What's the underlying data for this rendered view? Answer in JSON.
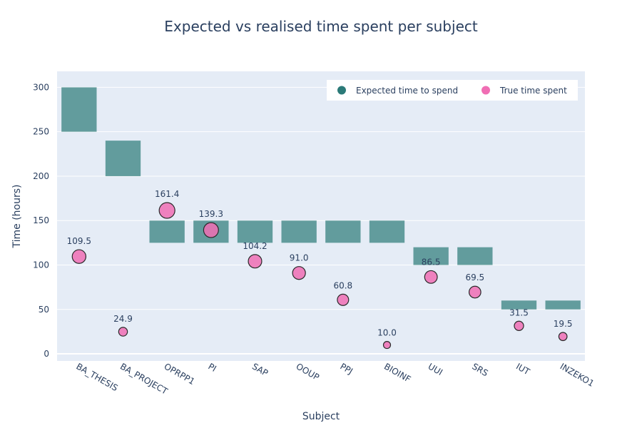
{
  "chart_data": {
    "type": "bar",
    "title": "Expected vs realised time spent per subject",
    "xlabel": "Subject",
    "ylabel": "Time (hours)",
    "ylim": [
      -8,
      318
    ],
    "yticks": [
      0,
      50,
      100,
      150,
      200,
      250,
      300
    ],
    "categories": [
      "BA_THESIS",
      "BA_PROJECT",
      "OPRPP1",
      "PI",
      "SAP",
      "OOUP",
      "PPJ",
      "BIOINF",
      "UUI",
      "SRS",
      "IUT",
      "INZEKO1"
    ],
    "legend_position": "top-right",
    "series": [
      {
        "name": "Expected time to spend",
        "kind": "range-bar",
        "color": "#2b7a78",
        "ranges": [
          [
            250,
            300
          ],
          [
            200,
            240
          ],
          [
            125,
            150
          ],
          [
            125,
            150
          ],
          [
            125,
            150
          ],
          [
            125,
            150
          ],
          [
            125,
            150
          ],
          [
            125,
            150
          ],
          [
            100,
            120
          ],
          [
            100,
            120
          ],
          [
            50,
            60
          ],
          [
            50,
            60
          ]
        ]
      },
      {
        "name": "True time spent",
        "kind": "marker",
        "color": "#f06eb4",
        "values": [
          109.5,
          24.9,
          161.4,
          139.3,
          104.2,
          91.0,
          60.8,
          10.0,
          86.5,
          69.5,
          31.5,
          19.5
        ],
        "labels": [
          "109.5",
          "24.9",
          "161.4",
          "139.3",
          "104.2",
          "91.0",
          "60.8",
          "10.0",
          "86.5",
          "69.5",
          "31.5",
          "19.5"
        ]
      }
    ]
  }
}
